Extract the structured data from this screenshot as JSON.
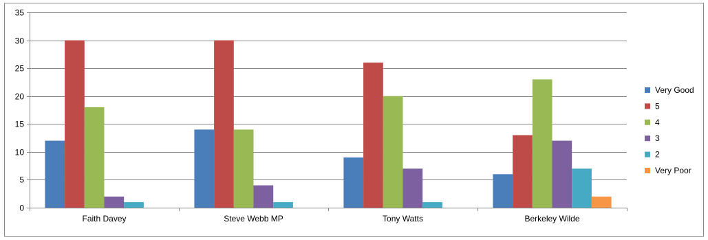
{
  "chart_data": {
    "type": "bar",
    "title": "",
    "xlabel": "",
    "ylabel": "",
    "categories": [
      "Faith Davey",
      "Steve Webb MP",
      "Tony Watts",
      "Berkeley Wilde"
    ],
    "ylim": [
      0,
      35
    ],
    "yticks": [
      0,
      5,
      10,
      15,
      20,
      25,
      30,
      35
    ],
    "grid": true,
    "legend_position": "right",
    "series": [
      {
        "name": "Very Good",
        "color": "#4A7EBB",
        "values": [
          12,
          14,
          9,
          6
        ]
      },
      {
        "name": "5",
        "color": "#BE4B48",
        "values": [
          30,
          30,
          26,
          13
        ]
      },
      {
        "name": "4",
        "color": "#98B954",
        "values": [
          18,
          14,
          20,
          23
        ]
      },
      {
        "name": "3",
        "color": "#7D60A0",
        "values": [
          2,
          4,
          7,
          12
        ]
      },
      {
        "name": "2",
        "color": "#46AAC5",
        "values": [
          1,
          1,
          1,
          7
        ]
      },
      {
        "name": "Very Poor",
        "color": "#F79646",
        "values": [
          0,
          0,
          0,
          2
        ]
      }
    ]
  }
}
